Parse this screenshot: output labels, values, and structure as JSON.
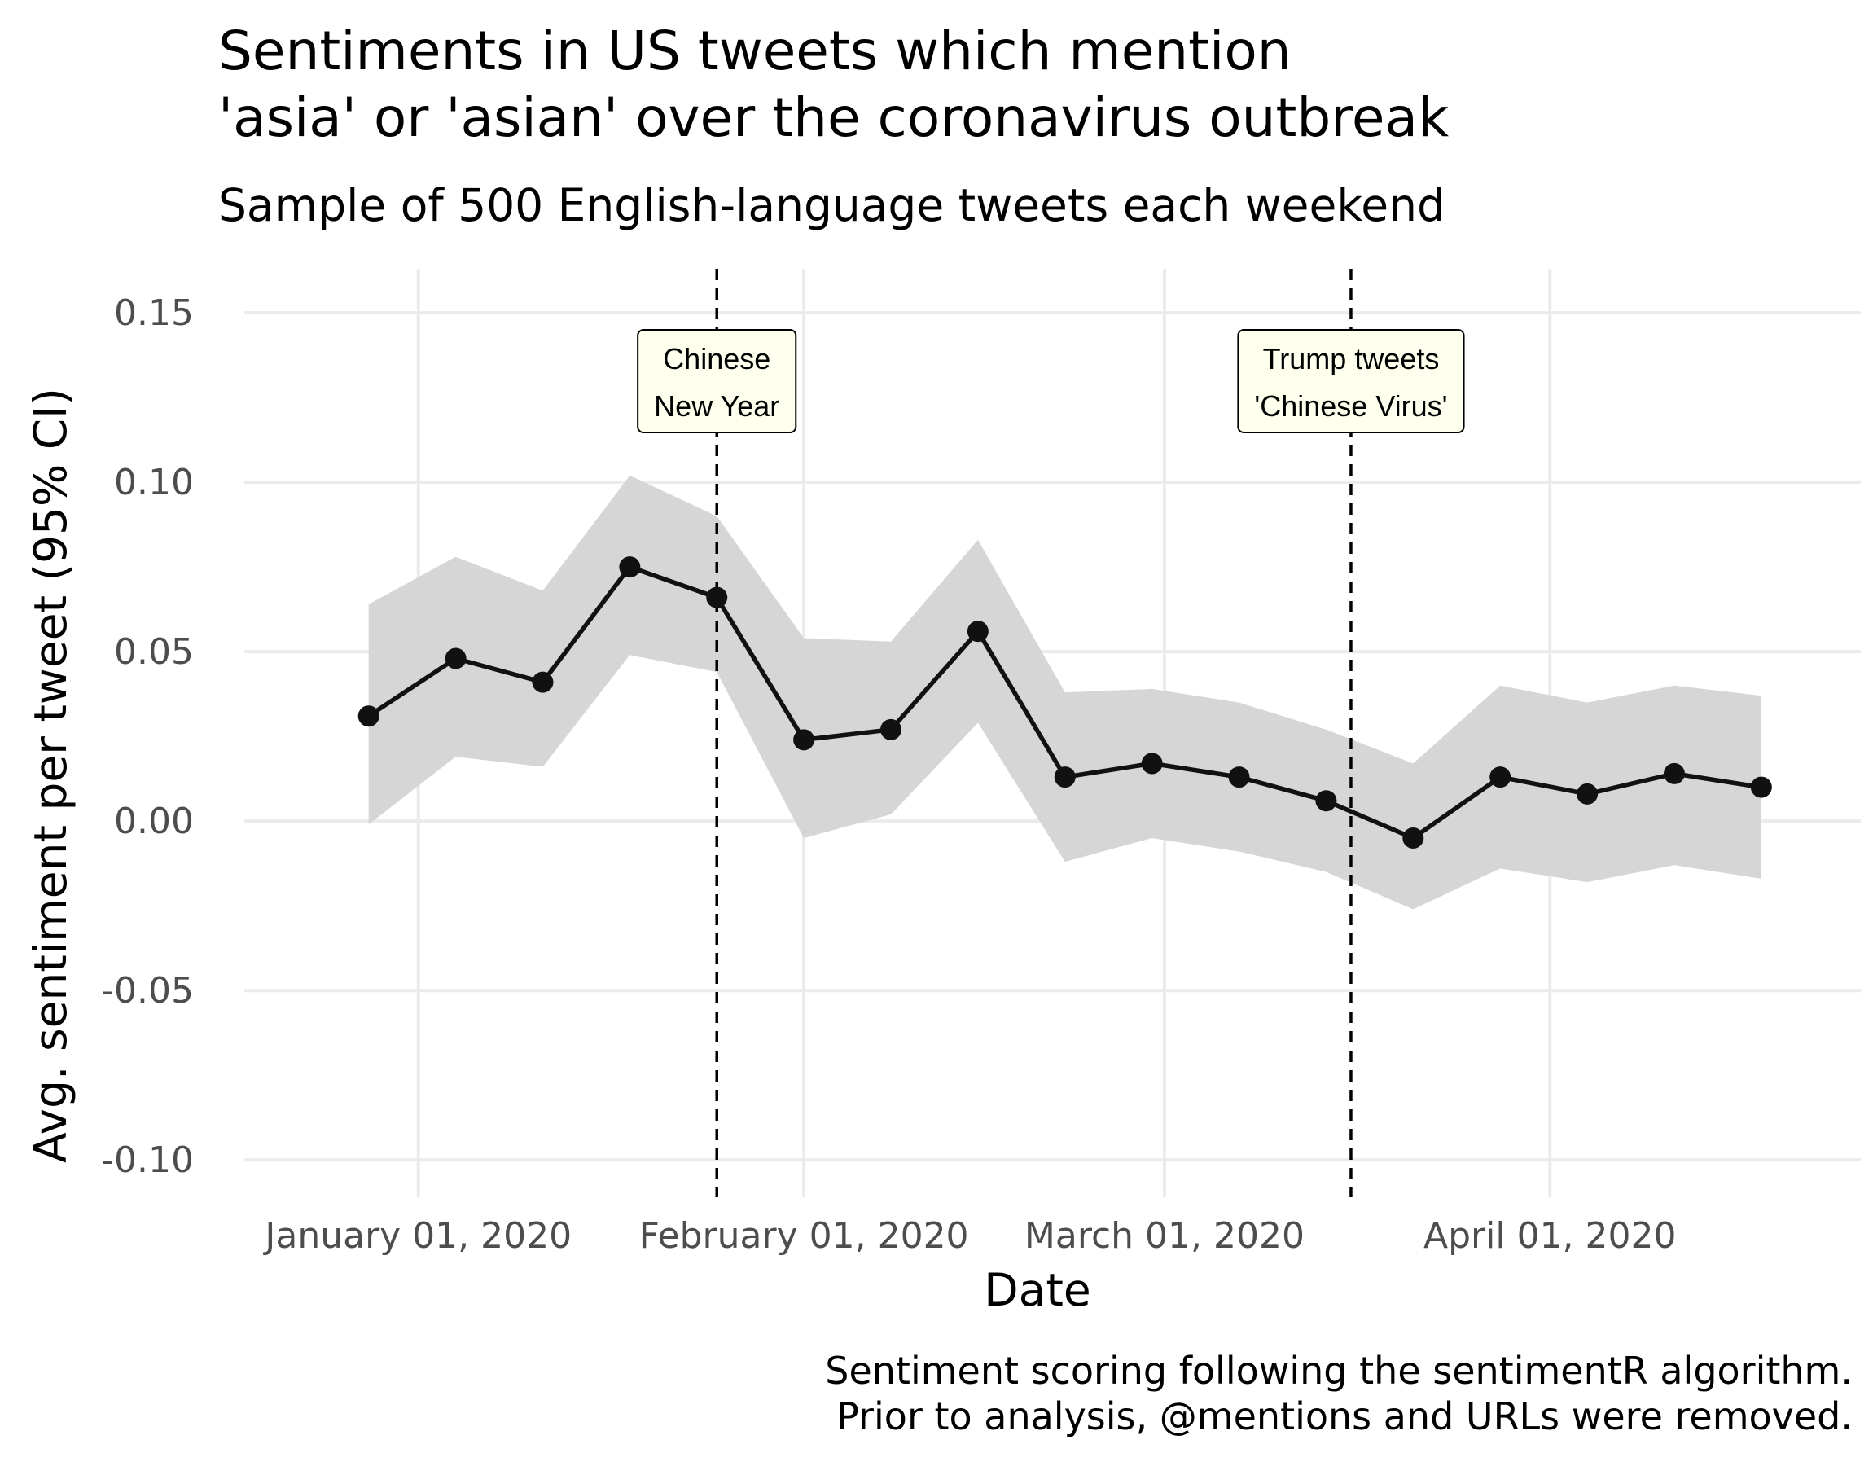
{
  "chart_data": {
    "type": "line",
    "title_lines": [
      "Sentiments in US tweets which mention",
      "'asia' or 'asian' over the coronavirus outbreak"
    ],
    "subtitle": "Sample of 500 English-language tweets each weekend",
    "xlabel": "Date",
    "ylabel": "Avg. sentiment per tweet (95% CI)",
    "caption_lines": [
      "Sentiment scoring following the sentimentR algorithm.",
      "Prior to analysis, @mentions and URLs were removed."
    ],
    "x_ticks": [
      {
        "date": "2020-01-01",
        "label": "January 01, 2020"
      },
      {
        "date": "2020-02-01",
        "label": "February 01, 2020"
      },
      {
        "date": "2020-03-01",
        "label": "March 01, 2020"
      },
      {
        "date": "2020-04-01",
        "label": "April 01, 2020"
      }
    ],
    "y_ticks": [
      {
        "value": 0.15,
        "label": "0.15"
      },
      {
        "value": 0.1,
        "label": "0.10"
      },
      {
        "value": 0.05,
        "label": "0.05"
      },
      {
        "value": 0.0,
        "label": "0.00"
      },
      {
        "value": -0.05,
        "label": "-0.05"
      },
      {
        "value": -0.1,
        "label": "-0.10"
      }
    ],
    "xlim": [
      "2019-12-18",
      "2020-04-26"
    ],
    "ylim": [
      -0.111,
      0.163
    ],
    "grid": true,
    "series": [
      {
        "x": [
          "2019-12-28",
          "2020-01-04",
          "2020-01-11",
          "2020-01-18",
          "2020-01-25",
          "2020-02-01",
          "2020-02-08",
          "2020-02-15",
          "2020-02-22",
          "2020-02-29",
          "2020-03-07",
          "2020-03-14",
          "2020-03-21",
          "2020-03-28",
          "2020-04-04",
          "2020-04-11",
          "2020-04-18"
        ],
        "y": [
          0.031,
          0.048,
          0.041,
          0.075,
          0.066,
          0.024,
          0.027,
          0.056,
          0.013,
          0.017,
          0.013,
          0.006,
          -0.005,
          0.013,
          0.008,
          0.014,
          0.01
        ],
        "ci_low": [
          -0.001,
          0.019,
          0.016,
          0.049,
          0.044,
          -0.005,
          0.002,
          0.029,
          -0.012,
          -0.005,
          -0.009,
          -0.015,
          -0.026,
          -0.014,
          -0.018,
          -0.013,
          -0.017
        ],
        "ci_high": [
          0.064,
          0.078,
          0.068,
          0.102,
          0.09,
          0.054,
          0.053,
          0.083,
          0.038,
          0.039,
          0.035,
          0.027,
          0.017,
          0.04,
          0.035,
          0.04,
          0.037
        ],
        "color": "#111111",
        "ribbon_color": "#d6d6d6"
      }
    ],
    "events": [
      {
        "date": "2020-01-25",
        "label_lines": [
          "Chinese",
          "New Year"
        ]
      },
      {
        "date": "2020-03-16",
        "label_lines": [
          "Trump tweets",
          "'Chinese Virus'"
        ]
      }
    ],
    "annotation_fill": "#ffffee"
  }
}
